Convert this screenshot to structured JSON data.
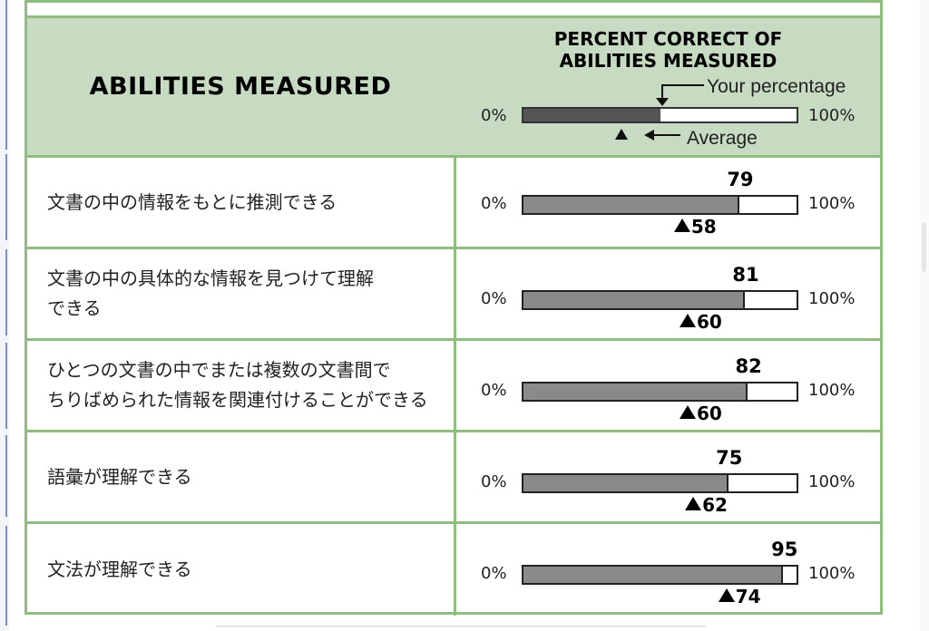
{
  "header": {
    "left_title": "ABILITIES MEASURED",
    "right_title_line1": "PERCENT CORRECT OF",
    "right_title_line2": "ABILITIES MEASURED",
    "legend": {
      "zero": "0%",
      "hundred": "100%",
      "your_label": "Your percentage",
      "avg_label": "Average",
      "example_fill": 0.5,
      "example_avg": 0.36
    }
  },
  "rows": [
    {
      "label": "文書の中の情報をもとに推測できる",
      "score": 79,
      "avg": 58,
      "score_label": "79",
      "avg_label": "58",
      "zero": "0%",
      "hundred": "100%"
    },
    {
      "label": "文書の中の具体的な情報を見つけて理解\nできる",
      "score": 81,
      "avg": 60,
      "score_label": "81",
      "avg_label": "60",
      "zero": "0%",
      "hundred": "100%"
    },
    {
      "label": "ひとつの文書の中でまたは複数の文書間で\nちりばめられた情報を関連付けることができる",
      "score": 82,
      "avg": 60,
      "score_label": "82",
      "avg_label": "60",
      "zero": "0%",
      "hundred": "100%"
    },
    {
      "label": "語彙が理解できる",
      "score": 75,
      "avg": 62,
      "score_label": "75",
      "avg_label": "62",
      "zero": "0%",
      "hundred": "100%"
    },
    {
      "label": "文法が理解できる",
      "score": 95,
      "avg": 74,
      "score_label": "95",
      "avg_label": "74",
      "zero": "0%",
      "hundred": "100%"
    }
  ]
}
